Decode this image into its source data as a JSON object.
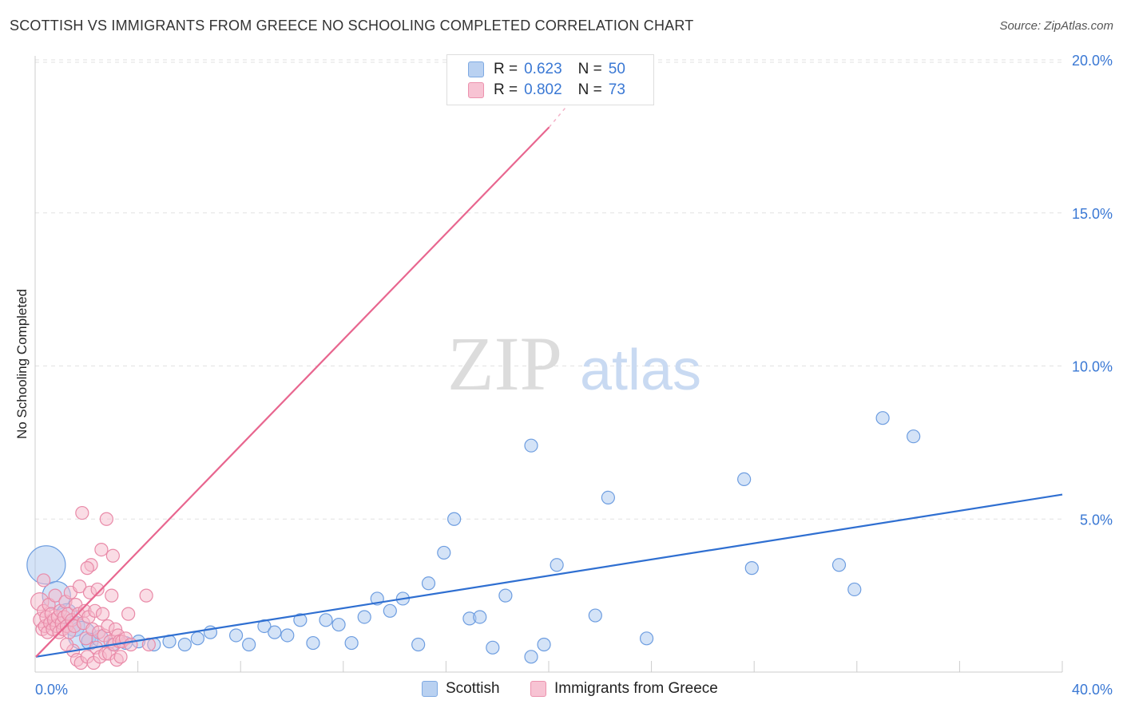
{
  "title": "SCOTTISH VS IMMIGRANTS FROM GREECE NO SCHOOLING COMPLETED CORRELATION CHART",
  "source": "Source: ZipAtlas.com",
  "watermark": {
    "zip": "ZIP",
    "atlas": "atlas"
  },
  "legend": {
    "r_label": "R =",
    "n_label": "N =",
    "series": [
      {
        "name": "Scottish",
        "r": "0.623",
        "n": "50"
      },
      {
        "name": "Immigrants from Greece",
        "r": "0.802",
        "n": "73"
      }
    ]
  },
  "colors": {
    "blue_fill": "#aac8ef",
    "blue_stroke": "#6d9de0",
    "blue_line": "#2f6fd1",
    "pink_fill": "#f5b9cc",
    "pink_stroke": "#e98aa8",
    "pink_line": "#e8668f",
    "tick_text": "#3a78d4",
    "grid": "#e2e2e2"
  },
  "chart_data": {
    "type": "scatter",
    "title": "SCOTTISH VS IMMIGRANTS FROM GREECE NO SCHOOLING COMPLETED CORRELATION CHART",
    "xlabel": "",
    "ylabel": "No Schooling Completed",
    "xlim": [
      0,
      40
    ],
    "ylim": [
      0,
      20.5
    ],
    "x_tick_labels": [
      "0.0%",
      "40.0%"
    ],
    "y_ticks": [
      5,
      10,
      15,
      20
    ],
    "y_tick_labels": [
      "5.0%",
      "10.0%",
      "15.0%",
      "20.0%"
    ],
    "grid": true,
    "series": [
      {
        "name": "Scottish",
        "color": "blue",
        "trend": {
          "x": [
            0,
            40
          ],
          "y": [
            0.5,
            5.8
          ]
        },
        "points": [
          [
            0.4,
            3.5,
            3
          ],
          [
            0.8,
            2.5,
            2.2
          ],
          [
            1.2,
            1.9,
            1.6
          ],
          [
            1.5,
            1.5,
            1.6
          ],
          [
            1.8,
            1.2,
            2.2
          ],
          [
            2.1,
            1.0,
            1.3
          ],
          [
            2.5,
            1.1,
            1.3
          ],
          [
            3.0,
            0.9,
            1
          ],
          [
            3.5,
            0.95,
            1
          ],
          [
            4.0,
            1.0,
            1
          ],
          [
            4.6,
            0.9,
            1
          ],
          [
            5.2,
            1.0,
            1
          ],
          [
            5.8,
            0.9,
            1
          ],
          [
            6.3,
            1.1,
            1
          ],
          [
            6.8,
            1.3,
            1
          ],
          [
            7.8,
            1.2,
            1
          ],
          [
            8.3,
            0.9,
            1
          ],
          [
            8.9,
            1.5,
            1
          ],
          [
            9.3,
            1.3,
            1
          ],
          [
            9.8,
            1.2,
            1
          ],
          [
            10.3,
            1.7,
            1
          ],
          [
            10.8,
            0.95,
            1
          ],
          [
            11.3,
            1.7,
            1
          ],
          [
            11.8,
            1.55,
            1
          ],
          [
            12.3,
            0.95,
            1
          ],
          [
            12.8,
            1.8,
            1
          ],
          [
            13.3,
            2.4,
            1
          ],
          [
            13.8,
            2.0,
            1
          ],
          [
            14.3,
            2.4,
            1
          ],
          [
            14.9,
            0.9,
            1
          ],
          [
            15.3,
            2.9,
            1
          ],
          [
            15.9,
            3.9,
            1
          ],
          [
            16.3,
            5.0,
            1
          ],
          [
            16.9,
            1.75,
            1
          ],
          [
            17.3,
            1.8,
            1
          ],
          [
            17.8,
            0.8,
            1
          ],
          [
            18.3,
            2.5,
            1
          ],
          [
            19.3,
            0.5,
            1
          ],
          [
            19.3,
            7.4,
            1
          ],
          [
            19.8,
            0.9,
            1
          ],
          [
            20.3,
            3.5,
            1
          ],
          [
            21.8,
            1.85,
            1
          ],
          [
            22.3,
            5.7,
            1
          ],
          [
            23.8,
            1.1,
            1
          ],
          [
            27.6,
            6.3,
            1
          ],
          [
            27.9,
            3.4,
            1
          ],
          [
            31.3,
            3.5,
            1
          ],
          [
            31.9,
            2.7,
            1
          ],
          [
            33.0,
            8.3,
            1
          ],
          [
            34.2,
            7.7,
            1
          ]
        ]
      },
      {
        "name": "Immigrants from Greece",
        "color": "pink",
        "trend": {
          "x": [
            0,
            20
          ],
          "y": [
            0.5,
            17.8
          ]
        },
        "trend_dashed": {
          "x": [
            20,
            21.2
          ],
          "y": [
            17.8,
            19.0
          ]
        },
        "points": [
          [
            0.15,
            2.3,
            1.4
          ],
          [
            0.2,
            1.7,
            1.2
          ],
          [
            0.25,
            1.4,
            1
          ],
          [
            0.3,
            2.0,
            1
          ],
          [
            0.35,
            1.5,
            1
          ],
          [
            0.4,
            1.8,
            1
          ],
          [
            0.45,
            1.3,
            1
          ],
          [
            0.5,
            2.2,
            1
          ],
          [
            0.55,
            1.6,
            1
          ],
          [
            0.6,
            1.9,
            1
          ],
          [
            0.65,
            1.4,
            1
          ],
          [
            0.7,
            1.7,
            1
          ],
          [
            0.75,
            2.5,
            1
          ],
          [
            0.8,
            1.5,
            1
          ],
          [
            0.85,
            1.8,
            1
          ],
          [
            0.9,
            1.3,
            1
          ],
          [
            0.95,
            2.0,
            1
          ],
          [
            1.0,
            1.6,
            1
          ],
          [
            1.05,
            1.4,
            1
          ],
          [
            1.1,
            1.8,
            1
          ],
          [
            1.15,
            2.3,
            1
          ],
          [
            1.2,
            1.5,
            1
          ],
          [
            1.25,
            1.9,
            1
          ],
          [
            1.3,
            1.3,
            1
          ],
          [
            1.35,
            2.6,
            1
          ],
          [
            1.4,
            1.7,
            1
          ],
          [
            1.45,
            0.7,
            1
          ],
          [
            1.5,
            1.5,
            1
          ],
          [
            1.55,
            2.2,
            1
          ],
          [
            1.6,
            0.4,
            1
          ],
          [
            1.65,
            1.9,
            1
          ],
          [
            1.7,
            2.8,
            1
          ],
          [
            1.75,
            0.3,
            1
          ],
          [
            1.8,
            5.2,
            1
          ],
          [
            1.85,
            1.6,
            1
          ],
          [
            1.9,
            2.0,
            1
          ],
          [
            1.95,
            1.1,
            1
          ],
          [
            2.0,
            0.5,
            1
          ],
          [
            2.05,
            1.8,
            1
          ],
          [
            2.1,
            2.6,
            1
          ],
          [
            2.15,
            3.5,
            1
          ],
          [
            2.2,
            1.4,
            1
          ],
          [
            2.25,
            0.3,
            1
          ],
          [
            2.3,
            2.0,
            1
          ],
          [
            2.35,
            0.8,
            1
          ],
          [
            2.4,
            2.7,
            1
          ],
          [
            2.45,
            1.3,
            1
          ],
          [
            2.5,
            0.5,
            1
          ],
          [
            2.55,
            4.0,
            1
          ],
          [
            2.6,
            1.9,
            1
          ],
          [
            2.65,
            1.2,
            1
          ],
          [
            2.7,
            0.6,
            1
          ],
          [
            2.75,
            5.0,
            1
          ],
          [
            2.8,
            1.5,
            1
          ],
          [
            2.85,
            0.6,
            1
          ],
          [
            2.9,
            1.0,
            1
          ],
          [
            2.95,
            2.5,
            1
          ],
          [
            3.0,
            3.8,
            1
          ],
          [
            3.05,
            0.9,
            1
          ],
          [
            3.1,
            1.4,
            1
          ],
          [
            3.15,
            0.4,
            1
          ],
          [
            3.2,
            1.2,
            1
          ],
          [
            3.25,
            1.0,
            1
          ],
          [
            3.3,
            0.5,
            1
          ],
          [
            3.35,
            1.0,
            1
          ],
          [
            3.5,
            1.1,
            1
          ],
          [
            3.6,
            1.9,
            1
          ],
          [
            3.7,
            0.9,
            1
          ],
          [
            4.3,
            2.5,
            1
          ],
          [
            4.4,
            0.9,
            1
          ],
          [
            0.3,
            3.0,
            1
          ],
          [
            1.2,
            0.9,
            1
          ],
          [
            2.0,
            3.4,
            1
          ]
        ]
      }
    ]
  }
}
